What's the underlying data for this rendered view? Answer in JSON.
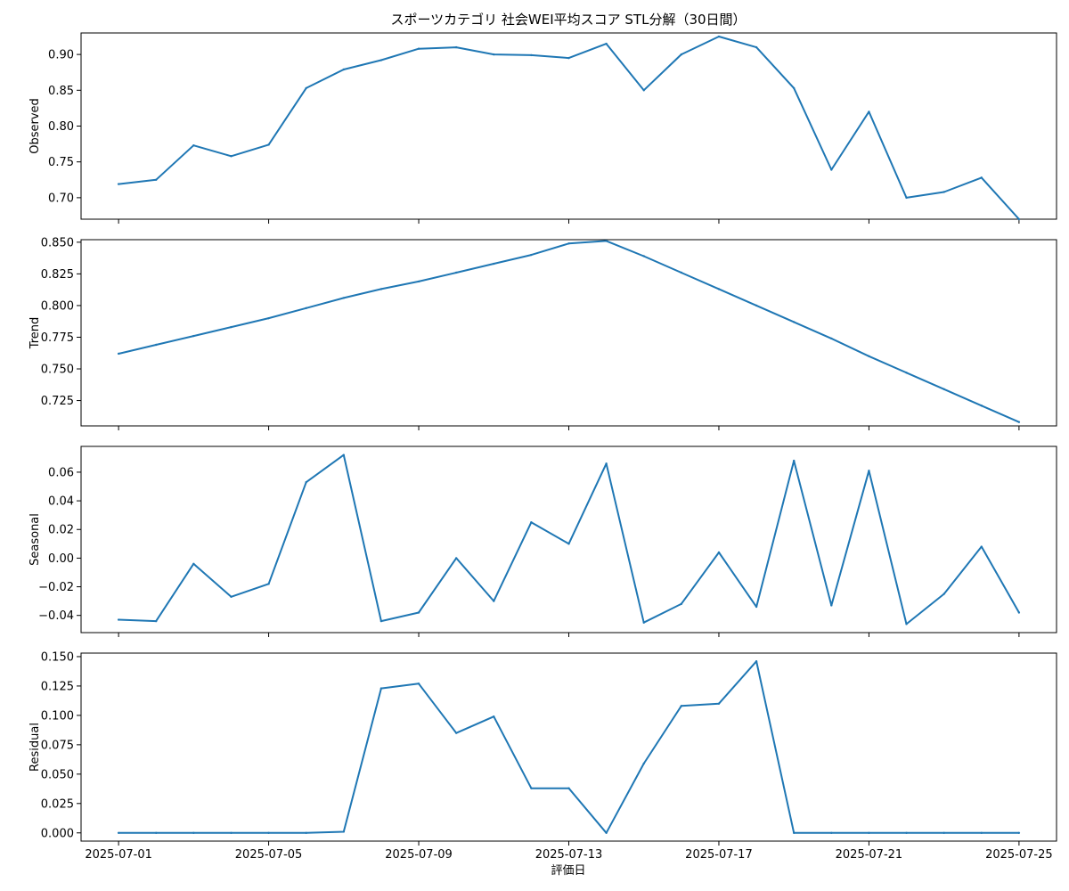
{
  "title": "スポーツカテゴリ 社会WEI平均スコア STL分解（30日間）",
  "xlabel": "評価日",
  "x_ticks": [
    "2025-07-01",
    "2025-07-05",
    "2025-07-09",
    "2025-07-13",
    "2025-07-17",
    "2025-07-21",
    "2025-07-25"
  ],
  "line_color": "#1f77b4",
  "chart_data": {
    "type": "line",
    "title": "スポーツカテゴリ 社会WEI平均スコア STL分解（30日間）",
    "xlabel": "評価日",
    "x": [
      "2025-07-01",
      "2025-07-02",
      "2025-07-03",
      "2025-07-04",
      "2025-07-05",
      "2025-07-06",
      "2025-07-07",
      "2025-07-08",
      "2025-07-09",
      "2025-07-10",
      "2025-07-11",
      "2025-07-12",
      "2025-07-13",
      "2025-07-14",
      "2025-07-15",
      "2025-07-16",
      "2025-07-17",
      "2025-07-18",
      "2025-07-19",
      "2025-07-20",
      "2025-07-21",
      "2025-07-22",
      "2025-07-23",
      "2025-07-24",
      "2025-07-25"
    ],
    "xlim": [
      "2025-06-30",
      "2025-07-26"
    ],
    "panels": [
      {
        "ylabel": "Observed",
        "ylim": [
          0.67,
          0.93
        ],
        "y_ticks": [
          "0.70",
          "0.75",
          "0.80",
          "0.85",
          "0.90"
        ],
        "values": [
          0.719,
          0.725,
          0.773,
          0.758,
          0.774,
          0.853,
          0.879,
          0.892,
          0.908,
          0.91,
          0.9,
          0.899,
          0.895,
          0.915,
          0.85,
          0.9,
          0.925,
          0.91,
          0.853,
          0.739,
          0.82,
          0.7,
          0.708,
          0.728,
          0.67
        ]
      },
      {
        "ylabel": "Trend",
        "ylim": [
          0.705,
          0.852
        ],
        "y_ticks": [
          "0.725",
          "0.750",
          "0.775",
          "0.800",
          "0.825",
          "0.850"
        ],
        "values": [
          0.762,
          0.769,
          0.776,
          0.783,
          0.79,
          0.798,
          0.806,
          0.813,
          0.819,
          0.826,
          0.833,
          0.84,
          0.849,
          0.851,
          0.839,
          0.826,
          0.813,
          0.8,
          0.787,
          0.774,
          0.76,
          0.747,
          0.734,
          0.721,
          0.708
        ]
      },
      {
        "ylabel": "Seasonal",
        "ylim": [
          -0.052,
          0.078
        ],
        "y_ticks": [
          "−0.04",
          "−0.02",
          "0.00",
          "0.02",
          "0.04",
          "0.06"
        ],
        "values": [
          -0.043,
          -0.044,
          -0.004,
          -0.027,
          -0.018,
          0.053,
          0.072,
          -0.044,
          -0.038,
          0.0,
          -0.03,
          0.025,
          0.01,
          0.066,
          -0.045,
          -0.032,
          0.004,
          -0.034,
          0.068,
          -0.033,
          0.061,
          -0.046,
          -0.025,
          0.008,
          -0.038
        ]
      },
      {
        "ylabel": "Residual",
        "ylim": [
          -0.007,
          0.153
        ],
        "y_ticks": [
          "0.000",
          "0.025",
          "0.050",
          "0.075",
          "0.100",
          "0.125",
          "0.150"
        ],
        "values": [
          0.0,
          0.0,
          0.0,
          0.0,
          0.0,
          0.0,
          0.001,
          0.123,
          0.127,
          0.085,
          0.099,
          0.038,
          0.038,
          0.0,
          0.059,
          0.108,
          0.11,
          0.146,
          0.0,
          0.0,
          0.0,
          0.0,
          0.0,
          0.0,
          0.0
        ]
      }
    ]
  }
}
